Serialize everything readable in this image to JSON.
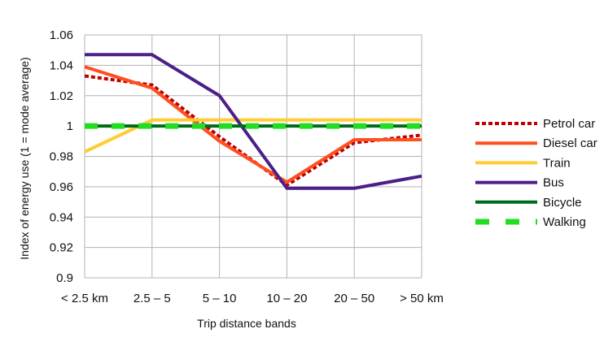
{
  "chart_data": {
    "type": "line",
    "title": "",
    "xlabel": "Trip distance bands",
    "ylabel": "Index of energy use (1 = mode average)",
    "categories": [
      "< 2.5 km",
      "2.5 – 5",
      "5 – 10",
      "10 – 20",
      "20 – 50",
      "> 50 km"
    ],
    "ylim": [
      0.9,
      1.06
    ],
    "yticks": [
      0.9,
      0.92,
      0.94,
      0.96,
      0.98,
      1,
      1.02,
      1.04,
      1.06
    ],
    "ytick_labels": [
      "0.9",
      "0.92",
      "0.94",
      "0.96",
      "0.98",
      "1",
      "1.02",
      "1.04",
      "1.06"
    ],
    "grid": true,
    "legend": "right",
    "series": [
      {
        "name": "Petrol car",
        "color": "#c00000",
        "style": "dotted",
        "values": [
          1.033,
          1.027,
          0.993,
          0.961,
          0.989,
          0.994
        ]
      },
      {
        "name": "Diesel car",
        "color": "#ff4f1f",
        "style": "solid",
        "values": [
          1.039,
          1.025,
          0.99,
          0.963,
          0.991,
          0.991
        ]
      },
      {
        "name": "Train",
        "color": "#ffcc33",
        "style": "solid",
        "values": [
          0.983,
          1.004,
          1.004,
          1.004,
          1.004,
          1.004
        ]
      },
      {
        "name": "Bus",
        "color": "#4b1f87",
        "style": "solid",
        "values": [
          1.047,
          1.047,
          1.02,
          0.959,
          0.959,
          0.967
        ]
      },
      {
        "name": "Bicycle",
        "color": "#006b1a",
        "style": "solid",
        "values": [
          1.0,
          1.0,
          1.0,
          1.0,
          1.0,
          1.0
        ]
      },
      {
        "name": "Walking",
        "color": "#22dd22",
        "style": "dashed",
        "values": [
          1.0,
          1.0,
          1.0,
          1.0,
          1.0,
          1.0
        ]
      }
    ]
  }
}
